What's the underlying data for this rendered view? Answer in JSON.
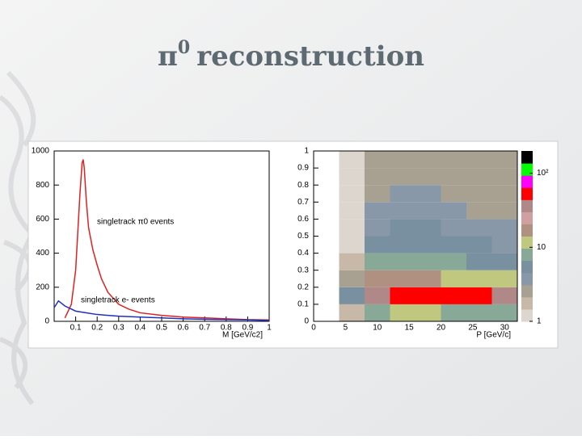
{
  "slide_title": {
    "symbol": "π",
    "superscript": "0",
    "text": "reconstruction"
  },
  "chart_data": [
    {
      "type": "line",
      "xlabel": "M [GeV/c2]",
      "xlim": [
        0,
        1
      ],
      "ylim": [
        0,
        1000
      ],
      "xticks": [
        0.1,
        0.2,
        0.3,
        0.4,
        0.5,
        0.6,
        0.7,
        0.8,
        0.9,
        1
      ],
      "yticks": [
        0,
        200,
        400,
        600,
        800,
        1000
      ],
      "series": [
        {
          "name": "singletrack π0 events",
          "color": "#e02020",
          "x": [
            0.05,
            0.08,
            0.1,
            0.12,
            0.13,
            0.135,
            0.14,
            0.15,
            0.16,
            0.18,
            0.2,
            0.22,
            0.25,
            0.3,
            0.35,
            0.4,
            0.5,
            0.6,
            0.7,
            0.8,
            0.9,
            1.0
          ],
          "values": [
            20,
            100,
            300,
            750,
            930,
            950,
            900,
            700,
            550,
            420,
            330,
            250,
            170,
            100,
            70,
            50,
            35,
            25,
            20,
            15,
            10,
            8
          ]
        },
        {
          "name": "singletrack e- events",
          "color": "#2030c0",
          "x": [
            0.0,
            0.02,
            0.05,
            0.1,
            0.15,
            0.2,
            0.3,
            0.4,
            0.5,
            0.6,
            0.7,
            0.8,
            0.9,
            1.0
          ],
          "values": [
            80,
            120,
            90,
            60,
            50,
            40,
            30,
            25,
            20,
            15,
            12,
            10,
            8,
            5
          ]
        }
      ]
    },
    {
      "type": "heatmap",
      "xlabel": "P [GeV/c]",
      "xlim": [
        0,
        32
      ],
      "ylim": [
        0,
        1
      ],
      "xticks": [
        0,
        5,
        10,
        15,
        20,
        25,
        30
      ],
      "yticks": [
        0,
        0.1,
        0.2,
        0.3,
        0.4,
        0.5,
        0.6,
        0.7,
        0.8,
        0.9,
        1
      ],
      "xbins": [
        0,
        4,
        8,
        12,
        16,
        20,
        24,
        28,
        32
      ],
      "ybins": [
        0,
        0.1,
        0.2,
        0.3,
        0.4,
        0.5,
        0.6,
        0.7,
        0.8,
        0.9,
        1
      ],
      "values": [
        [
          0,
          2,
          8,
          10,
          10,
          9,
          8,
          7
        ],
        [
          0,
          5,
          40,
          60,
          55,
          50,
          45,
          40
        ],
        [
          0,
          3,
          15,
          18,
          16,
          14,
          12,
          10
        ],
        [
          0,
          2,
          8,
          9,
          8,
          7,
          6,
          6
        ],
        [
          0,
          1,
          5,
          6,
          6,
          5,
          5,
          4
        ],
        [
          0,
          1,
          4,
          5,
          5,
          4,
          4,
          4
        ],
        [
          0,
          1,
          4,
          4,
          4,
          4,
          3,
          3
        ],
        [
          0,
          1,
          3,
          4,
          4,
          3,
          3,
          3
        ],
        [
          0,
          1,
          3,
          3,
          3,
          3,
          3,
          3
        ],
        [
          0,
          1,
          3,
          3,
          3,
          3,
          3,
          3
        ]
      ],
      "zlim": [
        1,
        200
      ],
      "zlog": true,
      "zticks": [
        1,
        10,
        {
          "value": 100,
          "label": "10²"
        }
      ],
      "colormap": [
        "#ddd6cf",
        "#c8b8a8",
        "#a8a090",
        "#8898a8",
        "#7890a0",
        "#88a898",
        "#c0c880",
        "#b09080",
        "#d0a0a0",
        "#b08888",
        "#ff0000",
        "#ff00ff",
        "#00ff00",
        "#000000"
      ]
    }
  ]
}
